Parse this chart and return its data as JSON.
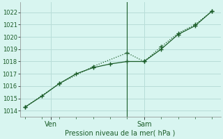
{
  "title": "",
  "xlabel": "Pression niveau de la mer( hPa )",
  "bg_color": "#d8f5f0",
  "grid_color": "#b8ddd8",
  "line_color": "#1a5c28",
  "ylim": [
    1013.5,
    1022.8
  ],
  "yticks": [
    1014,
    1015,
    1016,
    1017,
    1018,
    1019,
    1020,
    1021,
    1022
  ],
  "series1_x": [
    0,
    1,
    2,
    3,
    4,
    5,
    6,
    7,
    8,
    9,
    10,
    11
  ],
  "series1_y": [
    1014.3,
    1015.2,
    1016.2,
    1017.0,
    1017.5,
    1017.8,
    1018.0,
    1018.0,
    1019.0,
    1020.2,
    1020.9,
    1022.1
  ],
  "series2_x": [
    0,
    2,
    4,
    6,
    7,
    8,
    9,
    10,
    11
  ],
  "series2_y": [
    1014.3,
    1016.2,
    1017.6,
    1018.7,
    1018.0,
    1019.2,
    1020.3,
    1021.0,
    1022.1
  ],
  "ven_tick_x": 1.5,
  "sam_tick_x": 7.0,
  "vline_x": 6.0,
  "xlim": [
    -0.3,
    11.5
  ]
}
